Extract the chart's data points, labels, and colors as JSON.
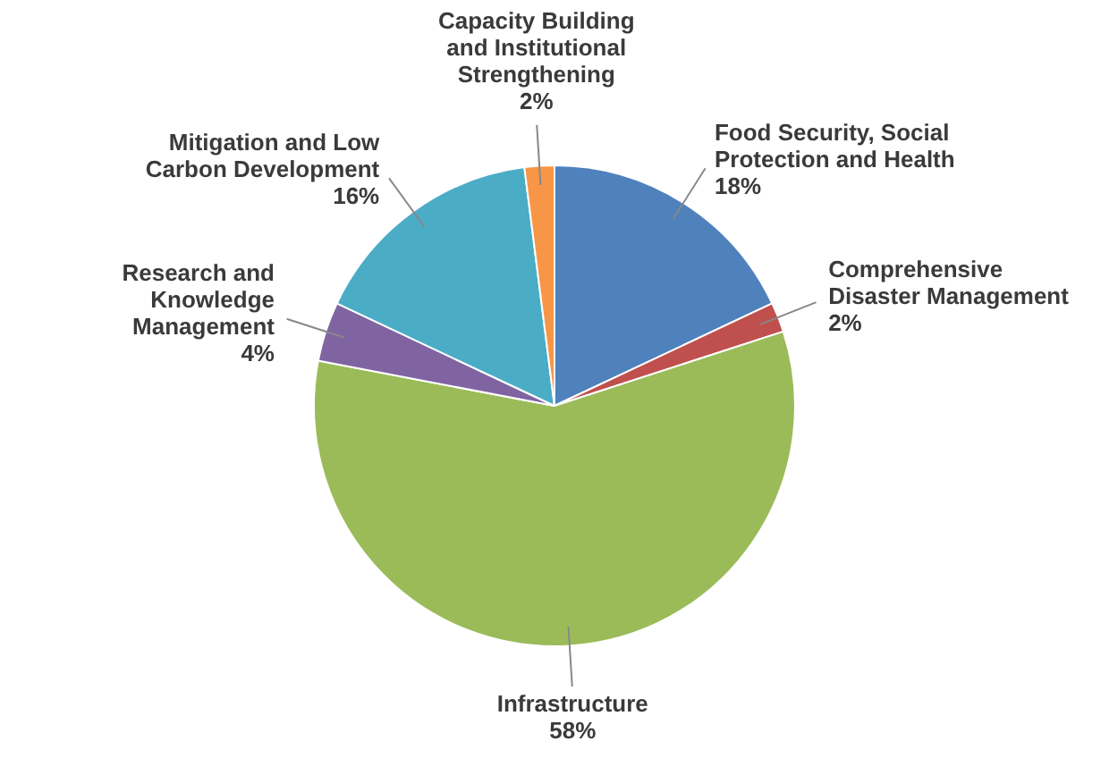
{
  "chart_data": {
    "type": "pie",
    "categories": [
      "Food Security, Social Protection and Health",
      "Comprehensive Disaster Management",
      "Infrastructure",
      "Research and Knowledge Management",
      "Mitigation and Low Carbon Development",
      "Capacity Building and Institutional Strengthening"
    ],
    "values": [
      18,
      2,
      58,
      4,
      16,
      2
    ],
    "colors": [
      "#4f81bd",
      "#c0504d",
      "#9bbb59",
      "#8064a2",
      "#4bacc6",
      "#f79646"
    ],
    "value_labels": [
      "18%",
      "2%",
      "58%",
      "4%",
      "16%",
      "2%"
    ],
    "legend": false
  }
}
